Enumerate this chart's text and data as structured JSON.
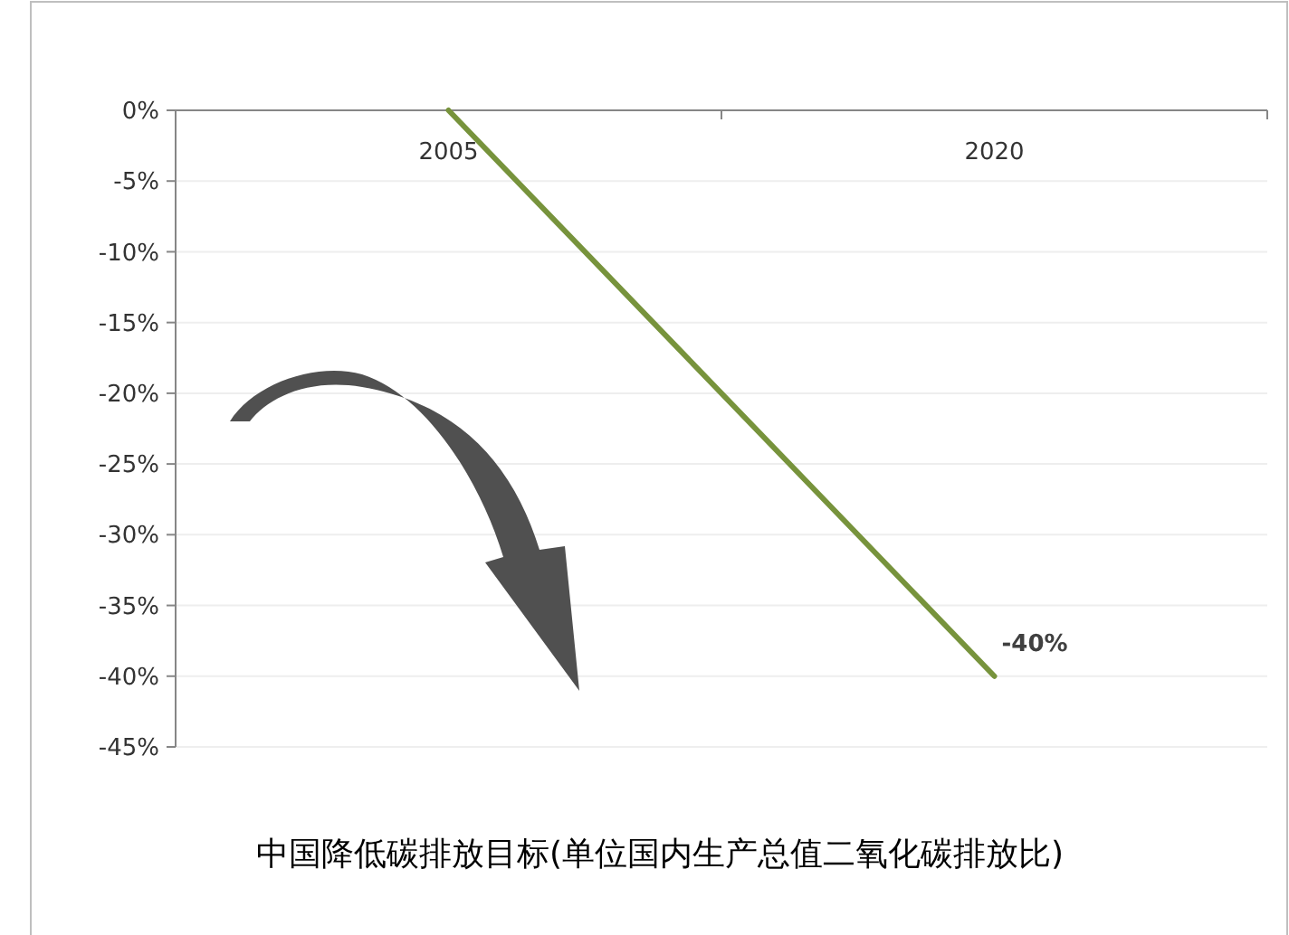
{
  "chart_data": {
    "type": "line",
    "title": "中国降低碳排放目标(单位国内生产总值二氧化碳排放比)",
    "categories": [
      "2005",
      "2020"
    ],
    "series": [
      {
        "color": "#77933c",
        "values": [
          0,
          -40
        ],
        "value_labels": [
          null,
          "-40%"
        ]
      }
    ],
    "ylim": [
      -45,
      0
    ],
    "yticks": [
      {
        "value": 0,
        "label": "0%"
      },
      {
        "value": -5,
        "label": "-5%"
      },
      {
        "value": -10,
        "label": "-10%"
      },
      {
        "value": -15,
        "label": "-15%"
      },
      {
        "value": -20,
        "label": "-20%"
      },
      {
        "value": -25,
        "label": "-25%"
      },
      {
        "value": -30,
        "label": "-30%"
      },
      {
        "value": -35,
        "label": "-35%"
      },
      {
        "value": -40,
        "label": "-40%"
      },
      {
        "value": -45,
        "label": "-45%"
      }
    ],
    "grid": "y",
    "marker": "none",
    "line_style": "solid"
  }
}
